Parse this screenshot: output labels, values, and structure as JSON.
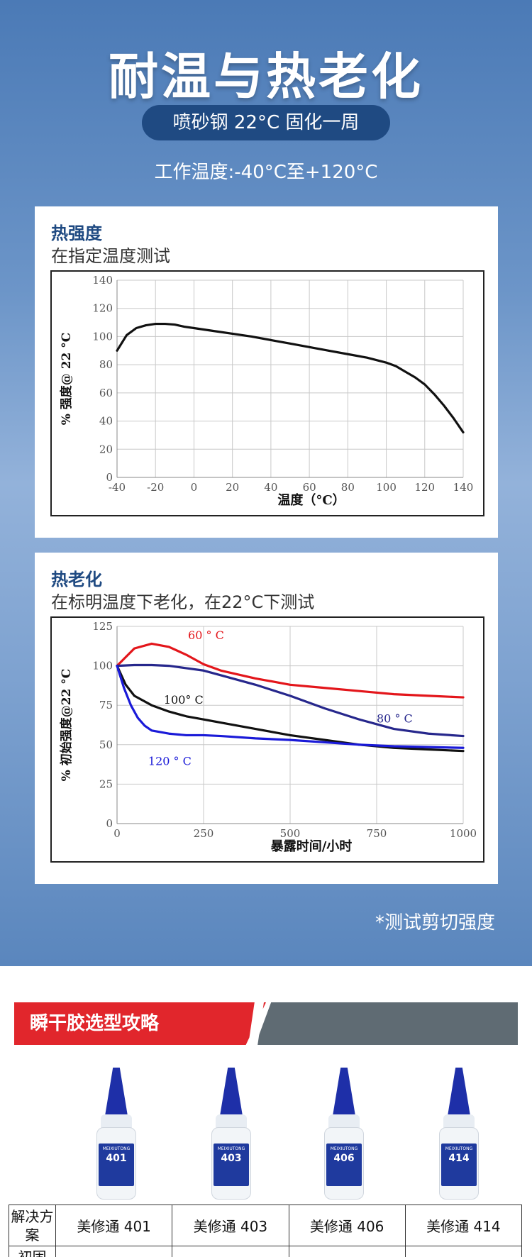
{
  "hero": {
    "title": "耐温与热老化",
    "pill": "喷砂钢 22°C 固化一周",
    "work_temp": "工作温度:-40°C至+120°C",
    "footnote": "*测试剪切强度"
  },
  "card1": {
    "title": "热强度",
    "subtitle": "在指定温度测试"
  },
  "card2": {
    "title": "热老化",
    "subtitle": "在标明温度下老化，在22°C下测试"
  },
  "chart_data": [
    {
      "type": "line",
      "title": "",
      "xlabel": "温度（°C）",
      "ylabel": "% 强度@ 22 °C",
      "xlim": [
        -40,
        140
      ],
      "ylim": [
        0,
        140
      ],
      "x_ticks": [
        -40,
        -20,
        0,
        20,
        40,
        60,
        80,
        100,
        120,
        140
      ],
      "y_ticks": [
        0,
        20,
        40,
        60,
        80,
        100,
        120,
        140
      ],
      "grid": true,
      "series": [
        {
          "color": "#111111",
          "x": [
            -40,
            -35,
            -30,
            -25,
            -20,
            -15,
            -10,
            -5,
            0,
            10,
            20,
            30,
            40,
            50,
            60,
            70,
            80,
            90,
            100,
            105,
            110,
            115,
            120,
            125,
            130,
            135,
            140
          ],
          "y": [
            90,
            101,
            106,
            108,
            109,
            109,
            108.5,
            107,
            106,
            104,
            102,
            100,
            97.5,
            95,
            92.5,
            90,
            87.5,
            85,
            81.5,
            79,
            75,
            71,
            66,
            59,
            51,
            42,
            32
          ]
        }
      ]
    },
    {
      "type": "line",
      "title": "",
      "xlabel": "暴露时间/小时",
      "ylabel": "% 初始强度@22 °C",
      "xlim": [
        0,
        1000
      ],
      "ylim": [
        0,
        125
      ],
      "x_ticks": [
        0,
        250,
        500,
        750,
        1000
      ],
      "y_ticks": [
        0,
        25,
        50,
        75,
        100,
        125
      ],
      "grid": true,
      "series": [
        {
          "name": "60 ° C",
          "color": "#e3161b",
          "x": [
            0,
            50,
            100,
            150,
            200,
            250,
            300,
            400,
            500,
            600,
            700,
            800,
            900,
            1000
          ],
          "y": [
            100,
            111,
            114,
            112,
            107,
            101,
            97,
            92,
            88,
            86,
            84,
            82,
            81,
            80
          ]
        },
        {
          "name": "80 ° C",
          "color": "#26278c",
          "x": [
            0,
            50,
            100,
            150,
            200,
            250,
            300,
            400,
            500,
            600,
            700,
            800,
            900,
            1000
          ],
          "y": [
            100,
            100.5,
            100.5,
            100,
            98.5,
            97,
            94,
            88,
            81,
            73,
            66,
            60,
            57,
            55.5
          ]
        },
        {
          "name": "100° C",
          "color": "#111111",
          "x": [
            0,
            25,
            50,
            100,
            150,
            200,
            250,
            300,
            400,
            500,
            600,
            700,
            800,
            900,
            1000
          ],
          "y": [
            100,
            88,
            81,
            75,
            71,
            68,
            66,
            64,
            60,
            56,
            53,
            50,
            48,
            47,
            46
          ]
        },
        {
          "name": "120 ° C",
          "color": "#1a1ad8",
          "x": [
            0,
            20,
            40,
            60,
            80,
            100,
            150,
            200,
            250,
            300,
            400,
            500,
            600,
            700,
            800,
            900,
            1000
          ],
          "y": [
            100,
            86,
            75,
            67,
            62,
            59,
            57,
            56,
            56,
            55.5,
            54,
            53,
            51.5,
            50,
            49,
            48.5,
            48
          ]
        }
      ]
    }
  ],
  "guide": {
    "title": "瞬干胶选型攻略"
  },
  "products": [
    {
      "brand": "MEIXIUTONG",
      "num": "401"
    },
    {
      "brand": "MEIXIUTONG",
      "num": "403"
    },
    {
      "brand": "MEIXIUTONG",
      "num": "406"
    },
    {
      "brand": "MEIXIUTONG",
      "num": "414"
    }
  ],
  "table": {
    "row1_head": "解决方案",
    "cols": [
      "美修通 401",
      "美修通 403",
      "美修通 406",
      "美修通 414"
    ],
    "row2_head": "初固"
  }
}
